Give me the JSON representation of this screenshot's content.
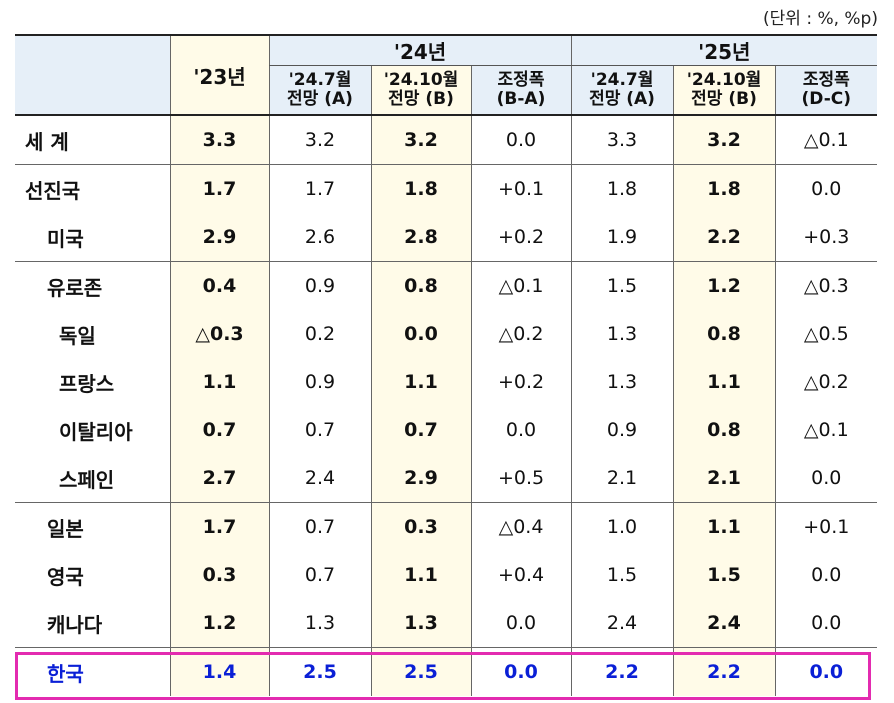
{
  "unit_note": "(단위 : %, %p)",
  "header": {
    "y23": "'23년",
    "y24": "'24년",
    "y25": "'25년",
    "jul": [
      "'24.7월",
      "전망 (A)"
    ],
    "oct": [
      "'24.10월",
      "전망 (B)"
    ],
    "adj24": [
      "조정폭",
      "(B-A)"
    ],
    "jul25": [
      "'24.7월",
      "전망 (A)"
    ],
    "oct25": [
      "'24.10월",
      "전망 (B)"
    ],
    "adj25": [
      "조정폭",
      "(D-C)"
    ]
  },
  "rows": [
    {
      "name": "세  계",
      "v": [
        "3.3",
        "3.2",
        "3.2",
        "0.0",
        "3.3",
        "3.2",
        "△0.1"
      ]
    },
    {
      "name": "선진국",
      "v": [
        "1.7",
        "1.7",
        "1.8",
        "+0.1",
        "1.8",
        "1.8",
        "0.0"
      ]
    },
    {
      "name": "미국",
      "v": [
        "2.9",
        "2.6",
        "2.8",
        "+0.2",
        "1.9",
        "2.2",
        "+0.3"
      ]
    },
    {
      "name": "유로존",
      "v": [
        "0.4",
        "0.9",
        "0.8",
        "△0.1",
        "1.5",
        "1.2",
        "△0.3"
      ]
    },
    {
      "name": "독일",
      "v": [
        "△0.3",
        "0.2",
        "0.0",
        "△0.2",
        "1.3",
        "0.8",
        "△0.5"
      ]
    },
    {
      "name": "프랑스",
      "v": [
        "1.1",
        "0.9",
        "1.1",
        "+0.2",
        "1.3",
        "1.1",
        "△0.2"
      ]
    },
    {
      "name": "이탈리아",
      "v": [
        "0.7",
        "0.7",
        "0.7",
        "0.0",
        "0.9",
        "0.8",
        "△0.1"
      ]
    },
    {
      "name": "스페인",
      "v": [
        "2.7",
        "2.4",
        "2.9",
        "+0.5",
        "2.1",
        "2.1",
        "0.0"
      ]
    },
    {
      "name": "일본",
      "v": [
        "1.7",
        "0.7",
        "0.3",
        "△0.4",
        "1.0",
        "1.1",
        "+0.1"
      ]
    },
    {
      "name": "영국",
      "v": [
        "0.3",
        "0.7",
        "1.1",
        "+0.4",
        "1.5",
        "1.5",
        "0.0"
      ]
    },
    {
      "name": "캐나다",
      "v": [
        "1.2",
        "1.3",
        "1.3",
        "0.0",
        "2.4",
        "2.4",
        "0.0"
      ]
    },
    {
      "name": "한국",
      "v": [
        "1.4",
        "2.5",
        "2.5",
        "0.0",
        "2.2",
        "2.2",
        "0.0"
      ]
    }
  ]
}
